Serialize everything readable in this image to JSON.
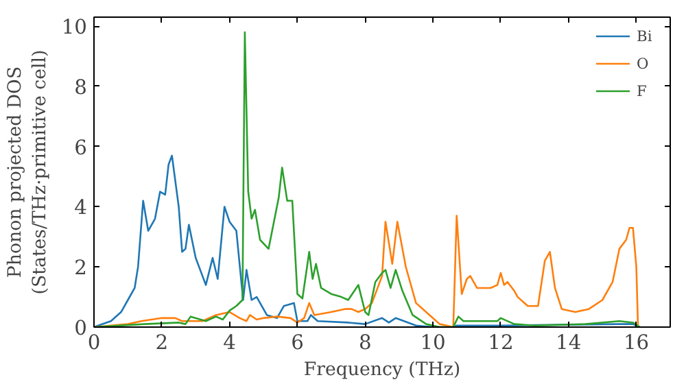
{
  "chart_data": {
    "type": "line",
    "xlabel": "Frequency (THz)",
    "ylabel": "Phonon projected DOS\n(States/THz·primitive cell)",
    "xlim": [
      0,
      17
    ],
    "ylim": [
      0,
      10.3
    ],
    "xticks": [
      0,
      2,
      4,
      6,
      8,
      10,
      12,
      14,
      16
    ],
    "yticks": [
      0,
      2,
      4,
      6,
      8,
      10
    ],
    "grid": false,
    "legend": "top right",
    "line_style": "solid",
    "series": [
      {
        "name": "Bi",
        "color": "#1f77b4",
        "x": [
          0,
          0.5,
          0.8,
          1.0,
          1.2,
          1.3,
          1.45,
          1.6,
          1.8,
          1.95,
          2.1,
          2.2,
          2.3,
          2.5,
          2.6,
          2.7,
          2.8,
          3.0,
          3.2,
          3.3,
          3.5,
          3.65,
          3.85,
          4.0,
          4.2,
          4.4,
          4.5,
          4.65,
          4.8,
          4.9,
          5.1,
          5.4,
          5.6,
          5.9,
          6.0,
          6.3,
          6.4,
          6.6,
          7.5,
          8.0,
          8.5,
          8.7,
          8.9,
          9.5,
          10.0,
          10.6,
          10.7,
          12.0,
          15.5,
          15.9,
          16.1
        ],
        "values": [
          0,
          0.2,
          0.5,
          0.9,
          1.3,
          2.0,
          4.2,
          3.2,
          3.6,
          4.5,
          4.4,
          5.4,
          5.7,
          4.0,
          2.5,
          2.6,
          3.4,
          2.3,
          1.7,
          1.4,
          2.3,
          1.6,
          4.0,
          3.5,
          3.2,
          0.9,
          1.9,
          0.9,
          1.0,
          0.8,
          0.4,
          0.3,
          0.7,
          0.8,
          0.2,
          0.2,
          0.4,
          0.2,
          0.15,
          0.1,
          0.3,
          0.15,
          0.3,
          0.05,
          0,
          0,
          0.05,
          0.05,
          0.1,
          0.1,
          0
        ]
      },
      {
        "name": "O",
        "color": "#ff7f0e",
        "x": [
          0,
          1.0,
          1.4,
          2.0,
          2.4,
          2.6,
          3.2,
          3.6,
          4.0,
          4.3,
          4.5,
          4.6,
          4.8,
          5.0,
          5.4,
          5.8,
          6.0,
          6.2,
          6.35,
          6.5,
          7.0,
          7.4,
          7.6,
          7.8,
          8.0,
          8.2,
          8.5,
          8.6,
          8.8,
          8.95,
          9.2,
          9.5,
          9.9,
          10.2,
          10.6,
          10.7,
          10.85,
          11.0,
          11.1,
          11.3,
          11.7,
          11.9,
          12.0,
          12.1,
          12.2,
          12.4,
          12.5,
          12.8,
          13.1,
          13.3,
          13.45,
          13.6,
          13.8,
          14.2,
          14.6,
          15.0,
          15.3,
          15.5,
          15.7,
          15.8,
          15.9,
          16.0,
          16.05
        ],
        "values": [
          0,
          0.1,
          0.2,
          0.3,
          0.3,
          0.2,
          0.2,
          0.4,
          0.5,
          0.3,
          0.2,
          0.4,
          0.25,
          0.3,
          0.35,
          0.3,
          0.15,
          0.3,
          0.8,
          0.4,
          0.5,
          0.6,
          0.6,
          0.5,
          0.6,
          0.8,
          1.7,
          3.5,
          2.1,
          3.5,
          2.0,
          0.8,
          0.4,
          0.1,
          0,
          3.7,
          1.1,
          1.6,
          1.7,
          1.3,
          1.3,
          1.4,
          1.8,
          1.4,
          1.5,
          1.2,
          1.0,
          0.7,
          0.7,
          2.2,
          2.5,
          1.3,
          0.6,
          0.5,
          0.6,
          0.9,
          1.5,
          2.6,
          2.9,
          3.3,
          3.3,
          2.0,
          0
        ]
      },
      {
        "name": "F",
        "color": "#2ca02c",
        "x": [
          0,
          1.5,
          2.5,
          2.7,
          2.85,
          3.3,
          3.6,
          3.8,
          4.0,
          4.2,
          4.38,
          4.45,
          4.55,
          4.65,
          4.75,
          4.9,
          5.15,
          5.45,
          5.55,
          5.7,
          5.85,
          6.0,
          6.15,
          6.35,
          6.45,
          6.55,
          6.7,
          7.0,
          7.3,
          7.5,
          7.8,
          8.0,
          8.1,
          8.3,
          8.5,
          8.6,
          8.75,
          8.9,
          9.1,
          9.4,
          9.8,
          10.2,
          10.6,
          10.75,
          10.9,
          11.5,
          11.9,
          12.0,
          12.4,
          13.0,
          14.5,
          15.5,
          15.9,
          16.1
        ],
        "values": [
          0,
          0.1,
          0.15,
          0.1,
          0.35,
          0.2,
          0.35,
          0.25,
          0.55,
          0.7,
          0.9,
          9.8,
          4.5,
          3.6,
          3.9,
          2.9,
          2.6,
          4.3,
          5.3,
          4.2,
          4.2,
          1.1,
          0.95,
          2.5,
          1.6,
          2.1,
          1.3,
          1.1,
          1.0,
          0.9,
          1.4,
          0.5,
          0.4,
          1.5,
          1.8,
          1.9,
          1.3,
          1.9,
          1.2,
          0.4,
          0.1,
          0,
          0,
          0.35,
          0.2,
          0.2,
          0.2,
          0.3,
          0.1,
          0.05,
          0.1,
          0.2,
          0.15,
          0
        ]
      }
    ]
  }
}
